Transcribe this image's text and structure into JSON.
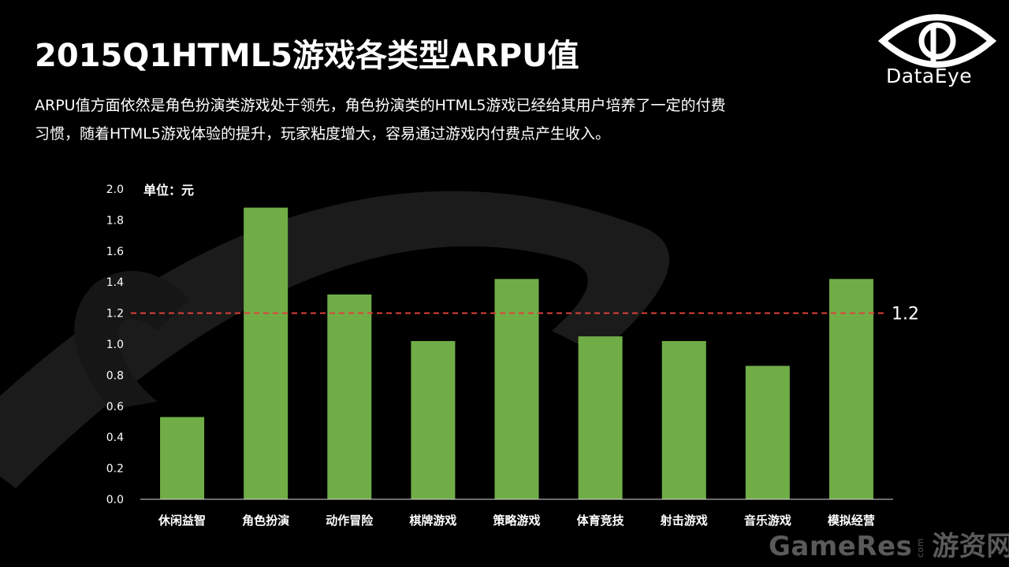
{
  "slide": {
    "title": "2015Q1HTML5游戏各类型ARPU值",
    "subtitle_line1": "ARPU值方面依然是角色扮演类游戏处于领先，角色扮演类的HTML5游戏已经给其用户培养了一定的付费",
    "subtitle_line2": "习惯，随着HTML5游戏体验的提升，玩家粘度增大，容易通过游戏内付费点产生收入。",
    "logo_text": "DataEye",
    "watermark_main": "GameRes",
    "watermark_com": "com",
    "watermark_cn": "游资网"
  },
  "chart_data": {
    "type": "bar",
    "unit_label": "单位：元",
    "categories": [
      "休闲益智",
      "角色扮演",
      "动作冒险",
      "棋牌游戏",
      "策略游戏",
      "体育竞技",
      "射击游戏",
      "音乐游戏",
      "模拟经营"
    ],
    "values": [
      0.53,
      1.88,
      1.32,
      1.02,
      1.42,
      1.05,
      1.02,
      0.86,
      1.42
    ],
    "ylim": [
      0,
      2.0
    ],
    "yticks": [
      "0.0",
      "0.2",
      "0.4",
      "0.6",
      "0.8",
      "1.0",
      "1.2",
      "1.4",
      "1.6",
      "1.8",
      "2.0"
    ],
    "reference_line": {
      "value": 1.2,
      "label": "1.2",
      "color": "#e0403a",
      "style": "dashed"
    },
    "bar_color": "#70ad47",
    "grid": false,
    "legend": "none"
  }
}
